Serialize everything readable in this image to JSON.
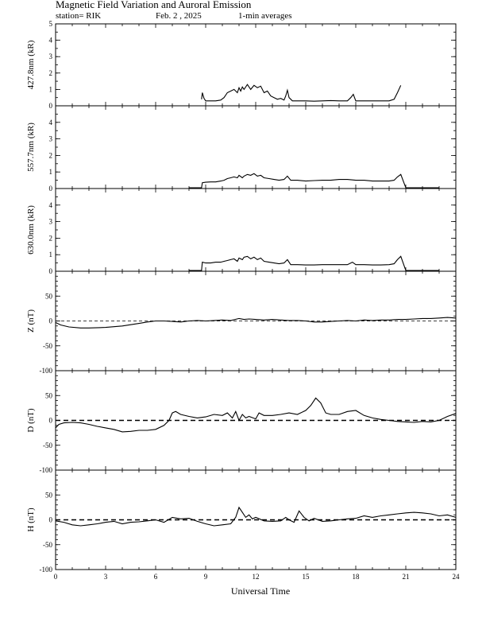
{
  "title": "Magnetic Field Variation and Auroral Emission",
  "subtitle": {
    "station": "station= RIK",
    "date": "Feb. 2  , 2025",
    "averaging": "1-min averages"
  },
  "xlabel": "Universal Time",
  "chart_data": [
    {
      "type": "line",
      "ylabel": "427.8nm (kR)",
      "xlim": [
        0,
        24
      ],
      "ylim": [
        0,
        5
      ],
      "yticks": [
        0,
        1,
        2,
        3,
        4,
        5
      ],
      "zero_line": false,
      "series": [
        {
          "x": [
            8.75,
            8.8,
            8.9,
            9.0,
            9.3,
            9.6,
            9.9,
            10.1,
            10.3,
            10.5,
            10.7,
            10.9,
            11.0,
            11.1,
            11.2,
            11.3,
            11.5,
            11.7,
            11.9,
            12.1,
            12.3,
            12.5,
            12.7,
            12.9,
            13.1,
            13.3,
            13.5,
            13.7,
            13.8,
            13.9,
            14.0,
            14.2,
            14.6,
            15.0,
            15.5,
            16.0,
            16.5,
            17.0,
            17.5,
            17.7,
            17.85,
            18.0,
            18.5,
            19.0,
            19.5,
            20.0,
            20.3,
            20.5,
            20.7
          ],
          "y": [
            0.4,
            0.8,
            0.45,
            0.3,
            0.3,
            0.3,
            0.35,
            0.5,
            0.8,
            0.9,
            1.0,
            0.8,
            1.1,
            0.9,
            1.15,
            1.0,
            1.3,
            1.0,
            1.25,
            1.1,
            1.2,
            0.8,
            0.9,
            0.6,
            0.5,
            0.4,
            0.45,
            0.35,
            0.6,
            0.95,
            0.5,
            0.3,
            0.3,
            0.3,
            0.28,
            0.3,
            0.32,
            0.3,
            0.3,
            0.5,
            0.7,
            0.3,
            0.3,
            0.3,
            0.3,
            0.3,
            0.4,
            0.8,
            1.25
          ]
        }
      ]
    },
    {
      "type": "line",
      "ylabel": "557.7nm (kR)",
      "xlim": [
        0,
        24
      ],
      "ylim": [
        0,
        5
      ],
      "yticks": [
        0,
        1,
        2,
        3,
        4
      ],
      "zero_line": false,
      "series": [
        {
          "x": [
            8.0,
            8.75,
            8.8,
            9.0,
            9.3,
            9.6,
            9.9,
            10.1,
            10.3,
            10.5,
            10.7,
            10.9,
            11.0,
            11.2,
            11.3,
            11.5,
            11.7,
            11.9,
            12.1,
            12.3,
            12.5,
            12.8,
            13.1,
            13.4,
            13.7,
            13.9,
            14.1,
            14.5,
            15.0,
            15.5,
            16.0,
            16.5,
            17.0,
            17.5,
            18.0,
            18.5,
            19.0,
            19.5,
            20.0,
            20.3,
            20.5,
            20.7,
            21.0,
            23.0
          ],
          "y": [
            0.05,
            0.05,
            0.35,
            0.38,
            0.4,
            0.4,
            0.45,
            0.5,
            0.6,
            0.65,
            0.7,
            0.65,
            0.8,
            0.65,
            0.75,
            0.85,
            0.8,
            0.9,
            0.75,
            0.8,
            0.65,
            0.6,
            0.55,
            0.5,
            0.55,
            0.75,
            0.5,
            0.5,
            0.45,
            0.48,
            0.5,
            0.5,
            0.55,
            0.55,
            0.5,
            0.5,
            0.45,
            0.45,
            0.45,
            0.5,
            0.7,
            0.85,
            0.05,
            0.05
          ]
        }
      ]
    },
    {
      "type": "line",
      "ylabel": "630.0nm (kR)",
      "xlim": [
        0,
        24
      ],
      "ylim": [
        0,
        5
      ],
      "yticks": [
        0,
        1,
        2,
        3,
        4
      ],
      "zero_line": false,
      "series": [
        {
          "x": [
            8.0,
            8.75,
            8.8,
            9.0,
            9.3,
            9.6,
            9.9,
            10.1,
            10.3,
            10.5,
            10.7,
            10.9,
            11.0,
            11.2,
            11.3,
            11.5,
            11.7,
            11.9,
            12.1,
            12.3,
            12.5,
            12.8,
            13.1,
            13.4,
            13.7,
            13.9,
            14.1,
            14.5,
            15.0,
            15.5,
            16.0,
            16.5,
            17.0,
            17.5,
            17.8,
            18.0,
            18.5,
            19.0,
            19.5,
            20.0,
            20.3,
            20.5,
            20.7,
            21.0,
            23.0
          ],
          "y": [
            0.05,
            0.05,
            0.55,
            0.5,
            0.5,
            0.55,
            0.55,
            0.6,
            0.65,
            0.7,
            0.75,
            0.6,
            0.8,
            0.7,
            0.85,
            0.9,
            0.75,
            0.85,
            0.7,
            0.8,
            0.6,
            0.55,
            0.5,
            0.45,
            0.5,
            0.7,
            0.4,
            0.4,
            0.38,
            0.38,
            0.4,
            0.4,
            0.4,
            0.4,
            0.55,
            0.4,
            0.4,
            0.38,
            0.38,
            0.4,
            0.45,
            0.7,
            0.9,
            0.05,
            0.05
          ]
        }
      ]
    },
    {
      "type": "line",
      "ylabel": "Z (nT)",
      "xlim": [
        0,
        24
      ],
      "ylim": [
        -100,
        100
      ],
      "yticks": [
        -100,
        -50,
        0,
        50
      ],
      "zero_line": true,
      "series": [
        {
          "x": [
            0,
            0.3,
            0.8,
            1.5,
            2.0,
            3.0,
            4.0,
            5.0,
            5.5,
            6.0,
            6.5,
            7.0,
            7.5,
            8.0,
            8.5,
            9.0,
            9.5,
            10.0,
            10.5,
            11.0,
            11.3,
            11.6,
            12.0,
            12.5,
            13.0,
            13.5,
            14.0,
            14.5,
            15.0,
            15.5,
            16.0,
            16.5,
            17.0,
            17.5,
            18.0,
            18.5,
            19.0,
            19.5,
            20.0,
            20.5,
            21.0,
            21.5,
            22.0,
            22.5,
            23.0,
            23.5,
            24.0
          ],
          "y": [
            -3,
            -8,
            -12,
            -14,
            -14,
            -13,
            -10,
            -5,
            -2,
            0,
            0,
            -1,
            -2,
            0,
            1,
            0,
            1,
            2,
            1,
            5,
            3,
            4,
            3,
            2,
            3,
            2,
            1,
            1,
            0,
            -2,
            -2,
            -1,
            0,
            1,
            0,
            2,
            1,
            2,
            2,
            3,
            3,
            4,
            5,
            5,
            6,
            7,
            6
          ]
        }
      ]
    },
    {
      "type": "line",
      "ylabel": "D (nT)",
      "xlim": [
        0,
        24
      ],
      "ylim": [
        -100,
        100
      ],
      "yticks": [
        -100,
        -50,
        0,
        50
      ],
      "zero_line": true,
      "series": [
        {
          "x": [
            0,
            0.2,
            0.5,
            1.0,
            1.5,
            2.0,
            2.5,
            3.0,
            3.5,
            4.0,
            4.5,
            5.0,
            5.5,
            6.0,
            6.5,
            6.8,
            7.0,
            7.2,
            7.5,
            8.0,
            8.5,
            9.0,
            9.5,
            10.0,
            10.3,
            10.6,
            10.8,
            11.0,
            11.2,
            11.4,
            11.6,
            12.0,
            12.2,
            12.5,
            13.0,
            13.5,
            14.0,
            14.5,
            15.0,
            15.3,
            15.6,
            15.9,
            16.2,
            16.5,
            17.0,
            17.5,
            18.0,
            18.5,
            19.0,
            19.5,
            20.0,
            20.5,
            21.0,
            21.5,
            22.0,
            22.5,
            23.0,
            23.5,
            24.0
          ],
          "y": [
            -15,
            -8,
            -5,
            -4,
            -5,
            -8,
            -12,
            -15,
            -18,
            -23,
            -22,
            -20,
            -20,
            -18,
            -10,
            0,
            15,
            18,
            12,
            8,
            5,
            7,
            12,
            10,
            15,
            5,
            18,
            0,
            12,
            5,
            8,
            3,
            15,
            10,
            10,
            12,
            15,
            12,
            20,
            30,
            45,
            35,
            15,
            12,
            12,
            18,
            20,
            10,
            5,
            2,
            0,
            -2,
            -3,
            -4,
            -2,
            -3,
            0,
            8,
            14
          ]
        }
      ]
    },
    {
      "type": "line",
      "ylabel": "H (nT)",
      "xlim": [
        0,
        24
      ],
      "ylim": [
        -100,
        100
      ],
      "yticks": [
        -100,
        -50,
        0,
        50
      ],
      "zero_line": true,
      "series": [
        {
          "x": [
            0,
            0.5,
            1.0,
            1.5,
            2.0,
            2.5,
            3.0,
            3.5,
            4.0,
            4.5,
            5.0,
            5.5,
            6.0,
            6.5,
            7.0,
            7.5,
            8.0,
            8.5,
            9.0,
            9.5,
            10.0,
            10.5,
            10.8,
            11.0,
            11.2,
            11.4,
            11.6,
            11.8,
            12.0,
            12.5,
            13.0,
            13.5,
            13.8,
            14.0,
            14.3,
            14.6,
            14.9,
            15.2,
            15.5,
            16.0,
            16.5,
            17.0,
            17.5,
            18.0,
            18.5,
            19.0,
            19.5,
            20.0,
            20.5,
            21.0,
            21.5,
            22.0,
            22.5,
            23.0,
            23.5,
            24.0
          ],
          "y": [
            -2,
            -5,
            -10,
            -12,
            -10,
            -8,
            -5,
            -3,
            -8,
            -5,
            -4,
            -2,
            0,
            -5,
            5,
            2,
            3,
            -3,
            -8,
            -12,
            -10,
            -8,
            5,
            25,
            15,
            5,
            10,
            2,
            5,
            -2,
            -3,
            -2,
            5,
            0,
            -5,
            18,
            5,
            -2,
            3,
            -3,
            -2,
            0,
            2,
            3,
            8,
            5,
            8,
            10,
            12,
            14,
            15,
            14,
            12,
            8,
            10,
            5
          ]
        }
      ]
    }
  ],
  "x_axis": {
    "ticks": [
      0,
      3,
      6,
      9,
      12,
      15,
      18,
      21,
      24
    ]
  }
}
